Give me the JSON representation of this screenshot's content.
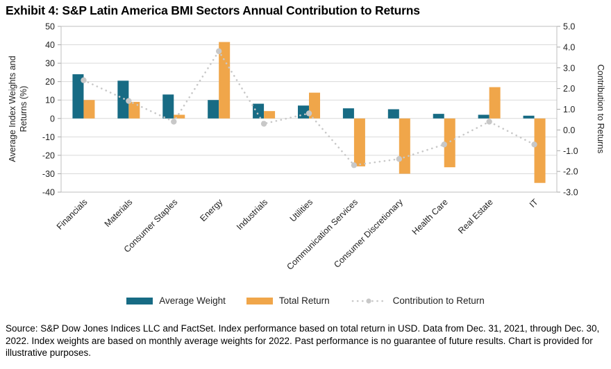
{
  "title": "Exhibit 4: S&P Latin America BMI Sectors Annual Contribution to Returns",
  "footer": "Source: S&P Dow Jones Indices LLC and FactSet. Index performance based on total return in USD. Data from Dec. 31, 2021, through Dec. 30, 2022. Index weights are based on monthly average weights for 2022. Past performance is no guarantee of future results. Chart is provided for illustrative purposes.",
  "colors": {
    "average_weight": "#176b84",
    "total_return": "#f0a64a",
    "contribution_dots": "#c8c8c8",
    "gridline": "#d9d9d9",
    "plot_border": "#bfbfbf",
    "axis_tick": "#a6a6a6",
    "text": "#1f1f1f"
  },
  "chart_data": {
    "type": "bar",
    "subtype": "combo bar + dotted line, dual y-axis",
    "categories": [
      "Financials",
      "Materials",
      "Consumer Staples",
      "Energy",
      "Industrials",
      "Utilities",
      "Communication Services",
      "Consumer Discretionary",
      "Health Care",
      "Real Estate",
      "IT"
    ],
    "series": [
      {
        "name": "Average Weight",
        "render": "bar",
        "axis": "left",
        "values": [
          24,
          20.5,
          13,
          10,
          8,
          7,
          5.5,
          5,
          2.5,
          2,
          1.5
        ]
      },
      {
        "name": "Total Return",
        "render": "bar",
        "axis": "left",
        "values": [
          10,
          9,
          2,
          41.5,
          4,
          14,
          -26,
          -30,
          -26.5,
          17,
          -35
        ]
      },
      {
        "name": "Contribution to Return",
        "render": "dotted-line",
        "axis": "right",
        "values": [
          2.4,
          1.4,
          0.4,
          3.8,
          0.3,
          0.8,
          -1.7,
          -1.4,
          -0.7,
          0.4,
          -0.7
        ]
      }
    ],
    "ylabel_left_lines": [
      "Average Index Weights and",
      "Returns (%)"
    ],
    "ylabel_right": "Contribution to Returns",
    "left_axis": {
      "min": -40,
      "max": 50,
      "ticks": [
        50,
        40,
        30,
        20,
        10,
        0,
        -10,
        -20,
        -30,
        -40
      ]
    },
    "right_axis": {
      "min": -3,
      "max": 5,
      "ticks": [
        "5.0",
        "4.0",
        "3.0",
        "2.0",
        "1.0",
        "0.0",
        "-1.0",
        "-2.0",
        "-3.0"
      ]
    },
    "grid": true,
    "legend_position": "bottom"
  }
}
